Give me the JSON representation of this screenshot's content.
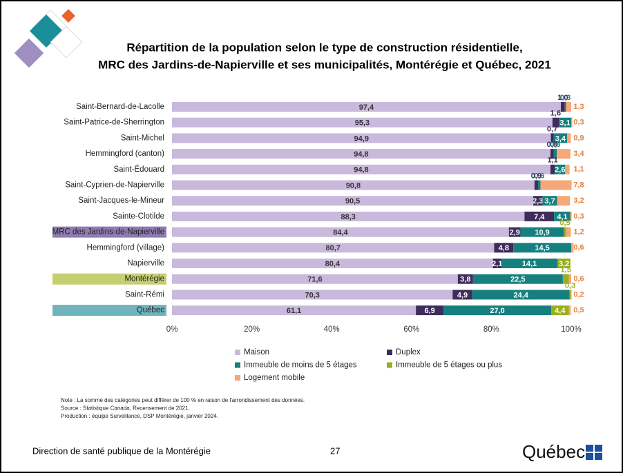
{
  "chart_data": {
    "type": "stacked-bar-horizontal",
    "title": "Répartition de la population selon le type de construction résidentielle,",
    "subtitle": "MRC des Jardins-de-Napierville et ses municipalités, Montérégie et Québec, 2021",
    "categories": [
      "Saint-Bernard-de-Lacolle",
      "Saint-Patrice-de-Sherrington",
      "Saint-Michel",
      "Hemmingford (canton)",
      "Saint-Édouard",
      "Saint-Cyprien-de-Napierville",
      "Saint-Jacques-le-Mineur",
      "Sainte-Clotilde",
      "MRC des Jardins-de-Napierville",
      "Hemmingford (village)",
      "Napierville",
      "Montérégie",
      "Saint-Rémi",
      "Québec"
    ],
    "category_highlights": [
      null,
      null,
      null,
      null,
      null,
      null,
      null,
      null,
      "#8e7bb0",
      null,
      null,
      "#c4cf72",
      null,
      "#6fb3bd"
    ],
    "series": [
      {
        "name": "Maison",
        "color": "#c9b9dc",
        "values": [
          97.4,
          95.3,
          94.9,
          94.8,
          94.8,
          90.8,
          90.5,
          88.3,
          84.4,
          80.7,
          80.4,
          71.6,
          70.3,
          61.1
        ],
        "value_labels": [
          "97,4",
          "95,3",
          "94,9",
          "94,8",
          "94,8",
          "90,8",
          "90,5",
          "88,3",
          "84,4",
          "80,7",
          "80,4",
          "71,6",
          "70,3",
          "61,1"
        ]
      },
      {
        "name": "Duplex",
        "color": "#3d2c5c",
        "values": [
          1.0,
          1.6,
          0.7,
          0.8,
          1.1,
          0.9,
          2.3,
          7.4,
          2.9,
          4.8,
          2.1,
          3.8,
          4.9,
          6.9
        ],
        "value_labels": [
          "1,0",
          "1,6",
          "0,7",
          "0,8",
          "1,1",
          "0,9",
          "2,3",
          "7,4",
          "2,9",
          "4,8",
          "2,1",
          "3,8",
          "4,9",
          "6,9"
        ]
      },
      {
        "name": "Immeuble de moins de 5 étages",
        "color": "#16807f",
        "values": [
          0.3,
          3.1,
          3.4,
          0.8,
          2.6,
          0.6,
          3.7,
          4.1,
          10.9,
          14.5,
          14.1,
          22.5,
          24.4,
          27.0
        ],
        "value_labels": [
          "0,3",
          "3,1",
          "3,4",
          "0,8",
          "2,6",
          "0,6",
          "3,7",
          "4,1",
          "10,9",
          "14,5",
          "14,1",
          "22,5",
          "24,4",
          "27,0"
        ]
      },
      {
        "name": "Immeuble de 5 étages ou plus",
        "color": "#9aae1e",
        "values": [
          null,
          null,
          null,
          null,
          null,
          null,
          null,
          null,
          0.5,
          null,
          3.2,
          1.5,
          0.3,
          4.4
        ],
        "value_labels": [
          null,
          null,
          null,
          null,
          null,
          null,
          null,
          null,
          "0,5",
          null,
          "3,2",
          "1,5",
          "0,3",
          "4,4"
        ]
      },
      {
        "name": "Logement mobile",
        "color": "#f5a878",
        "values": [
          1.3,
          0.3,
          0.9,
          3.4,
          1.1,
          7.8,
          3.2,
          0.3,
          1.2,
          0.6,
          null,
          0.6,
          0.2,
          0.5
        ],
        "value_labels": [
          "1,3",
          "0,3",
          "0,9",
          "3,4",
          "1,1",
          "7,8",
          "3,2",
          "0,3",
          "1,2",
          "0,6",
          null,
          "0,6",
          "0,2",
          "0,5"
        ]
      }
    ],
    "xlim": [
      0,
      100
    ],
    "xticks": [
      {
        "value": 0,
        "label": "0%"
      },
      {
        "value": 20,
        "label": "20%"
      },
      {
        "value": 40,
        "label": "40%"
      },
      {
        "value": 60,
        "label": "60%"
      },
      {
        "value": 80,
        "label": "80%"
      },
      {
        "value": 100,
        "label": "100%"
      }
    ],
    "notes": [
      "Note : La somme des catégories peut différer de 100 % en raison de l'arrondissement des données.",
      "Source : Statistique Canada, Recensement de 2021.",
      "Production : équipe Surveillance, DSP Montérégie, janvier 2024."
    ]
  },
  "footer": {
    "organization": "Direction de santé publique de la Montérégie",
    "page": "27",
    "logo": "Québec"
  }
}
